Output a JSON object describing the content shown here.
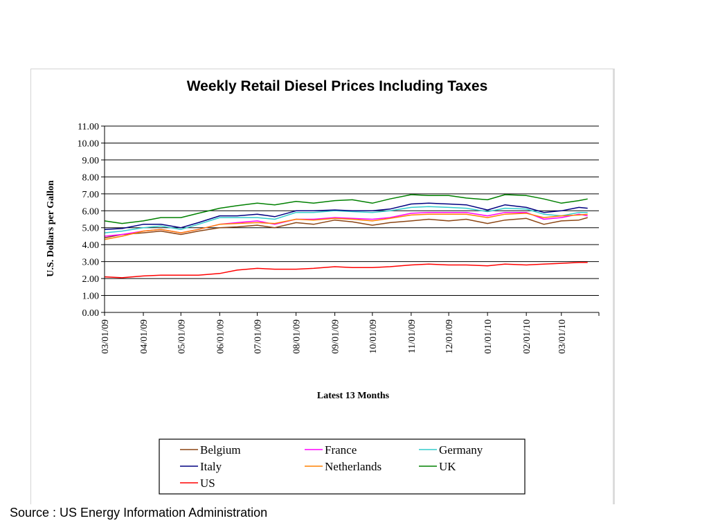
{
  "source_note": "Source : US Energy Information Administration",
  "chart_data": {
    "type": "line",
    "title": "Weekly Retail Diesel Prices Including Taxes",
    "xlabel": "Latest 13 Months",
    "ylabel": "U.S. Dollars per Gallon",
    "ylim": [
      0,
      11
    ],
    "yticks": [
      "0.00",
      "1.00",
      "2.00",
      "3.00",
      "4.00",
      "5.00",
      "6.00",
      "7.00",
      "8.00",
      "9.00",
      "10.00",
      "11.00"
    ],
    "xticks": [
      "03/01/09",
      "04/01/09",
      "05/01/09",
      "06/01/09",
      "07/01/09",
      "08/01/09",
      "09/01/09",
      "10/01/09",
      "11/01/09",
      "12/01/09",
      "01/01/10",
      "02/01/10",
      "03/01/10"
    ],
    "x_range": [
      "03/01/09",
      "03/31/10"
    ],
    "grid": true,
    "legend_position": "bottom",
    "x": [
      "03/01/09",
      "03/15/09",
      "04/01/09",
      "04/15/09",
      "05/01/09",
      "05/15/09",
      "06/01/09",
      "06/15/09",
      "07/01/09",
      "07/15/09",
      "08/01/09",
      "08/15/09",
      "09/01/09",
      "09/15/09",
      "10/01/09",
      "10/15/09",
      "11/01/09",
      "11/15/09",
      "12/01/09",
      "12/15/09",
      "01/01/10",
      "01/15/10",
      "02/01/10",
      "02/15/10",
      "03/01/10",
      "03/15/10",
      "03/22/10"
    ],
    "series": [
      {
        "name": "Belgium",
        "color": "#8B4513",
        "values": [
          4.4,
          4.6,
          4.7,
          4.8,
          4.6,
          4.8,
          5.0,
          5.05,
          5.15,
          5.0,
          5.3,
          5.2,
          5.45,
          5.35,
          5.15,
          5.3,
          5.4,
          5.5,
          5.4,
          5.5,
          5.25,
          5.45,
          5.55,
          5.2,
          5.4,
          5.45,
          5.6
        ]
      },
      {
        "name": "France",
        "color": "#FF00FF",
        "values": [
          4.5,
          4.6,
          4.8,
          4.9,
          4.7,
          4.9,
          5.2,
          5.3,
          5.4,
          5.2,
          5.5,
          5.5,
          5.6,
          5.55,
          5.5,
          5.6,
          5.85,
          5.9,
          5.9,
          5.9,
          5.7,
          5.9,
          5.9,
          5.5,
          5.6,
          5.8,
          5.7
        ]
      },
      {
        "name": "Germany",
        "color": "#33CCCC",
        "values": [
          4.7,
          4.8,
          5.0,
          5.1,
          4.9,
          5.2,
          5.6,
          5.6,
          5.6,
          5.5,
          5.9,
          5.9,
          6.0,
          5.95,
          5.9,
          6.0,
          6.2,
          6.25,
          6.2,
          6.15,
          5.95,
          6.15,
          6.1,
          5.8,
          5.7,
          5.9,
          5.9
        ]
      },
      {
        "name": "Italy",
        "color": "#000080",
        "values": [
          4.9,
          4.95,
          5.2,
          5.2,
          5.0,
          5.3,
          5.7,
          5.7,
          5.8,
          5.65,
          6.0,
          6.0,
          6.05,
          6.0,
          6.0,
          6.1,
          6.4,
          6.45,
          6.4,
          6.35,
          6.05,
          6.35,
          6.2,
          5.9,
          6.0,
          6.2,
          6.15
        ]
      },
      {
        "name": "Netherlands",
        "color": "#FF8000",
        "values": [
          4.3,
          4.5,
          4.8,
          4.9,
          4.7,
          4.9,
          5.2,
          5.25,
          5.3,
          5.25,
          5.5,
          5.45,
          5.55,
          5.5,
          5.4,
          5.55,
          5.75,
          5.8,
          5.8,
          5.8,
          5.6,
          5.8,
          5.85,
          5.6,
          5.7,
          5.75,
          5.8
        ]
      },
      {
        "name": "UK",
        "color": "#008000",
        "values": [
          5.4,
          5.25,
          5.4,
          5.6,
          5.6,
          5.85,
          6.15,
          6.3,
          6.45,
          6.35,
          6.55,
          6.45,
          6.6,
          6.65,
          6.45,
          6.7,
          6.95,
          6.9,
          6.9,
          6.75,
          6.65,
          6.95,
          6.9,
          6.7,
          6.45,
          6.6,
          6.7
        ]
      },
      {
        "name": "US",
        "color": "#FF0000",
        "values": [
          2.1,
          2.05,
          2.15,
          2.2,
          2.2,
          2.2,
          2.3,
          2.5,
          2.6,
          2.55,
          2.55,
          2.6,
          2.7,
          2.65,
          2.65,
          2.7,
          2.8,
          2.85,
          2.8,
          2.8,
          2.75,
          2.85,
          2.8,
          2.85,
          2.9,
          2.95,
          2.95
        ]
      }
    ]
  }
}
